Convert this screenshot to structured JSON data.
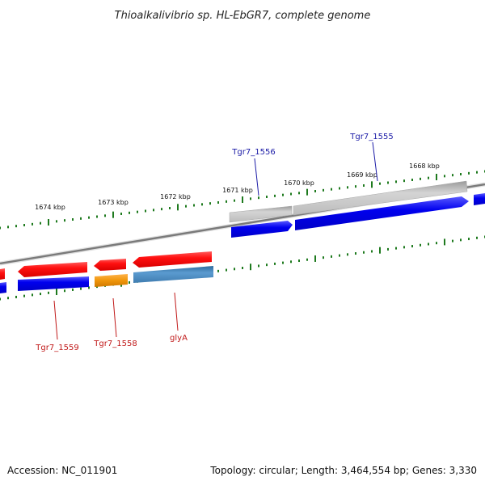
{
  "title": "Thioalkalivibrio sp. HL-EbGR7, complete genome",
  "footer": {
    "accession": "Accession: NC_011901",
    "info": "Topology: circular; Length: 3,464,554 bp; Genes: 3,330"
  },
  "scale": {
    "ticks": [
      "1674 kbp",
      "1673 kbp",
      "1672 kbp",
      "1671 kbp",
      "1670 kbp",
      "1669 kbp",
      "1668 kbp"
    ]
  },
  "genes": {
    "top_labels": [
      "Tgr7_1556",
      "Tgr7_1555"
    ],
    "bottom_labels": [
      "Tgr7_1559",
      "Tgr7_1558",
      "glyA"
    ]
  },
  "colors": {
    "forward_feature": "#c8c8c8",
    "reverse_feature": "#ff1a1a",
    "cds": "#0000ee",
    "orange_cds": "#f0960a",
    "steel_cds": "#4a86b8",
    "tick": "#1e7a1e",
    "backbone": "#888888",
    "label_blue": "#1a1aa6",
    "label_red": "#c01818"
  }
}
